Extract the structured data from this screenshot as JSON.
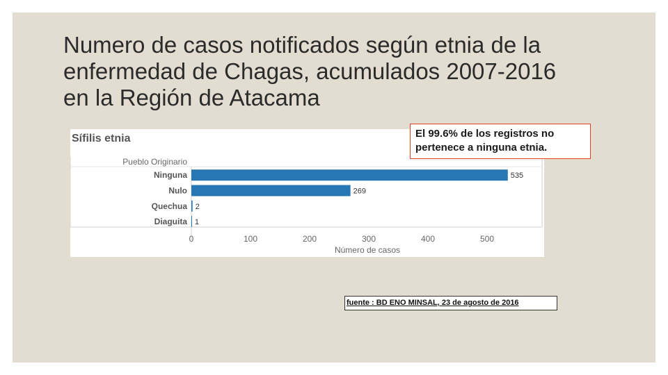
{
  "slide": {
    "title": "Numero de casos  notificados según etnia de la\nenfermedad de Chagas, acumulados 2007-2016\nen la Región de Atacama",
    "callout": "El 99.6% de los registros no pertenece a ninguna etnia.",
    "source": "fuente : BD ENO MINSAL, 23 de agosto de 2016"
  },
  "colors": {
    "background": "#e3ddd1",
    "bar": "#2777b4",
    "callout_border": "#e0402a"
  },
  "chart_data": {
    "type": "bar",
    "orientation": "horizontal",
    "title": "Sífilis etnia",
    "category_axis_label": "Pueblo Originario",
    "categories": [
      "Ninguna",
      "Nulo",
      "Quechua",
      "Diaguita"
    ],
    "values": [
      535,
      269,
      2,
      1
    ],
    "xlabel": "Número de casos",
    "xticks": [
      0,
      100,
      200,
      300,
      400,
      500
    ],
    "xlim": [
      0,
      550
    ],
    "grid": false,
    "legend": "none"
  }
}
